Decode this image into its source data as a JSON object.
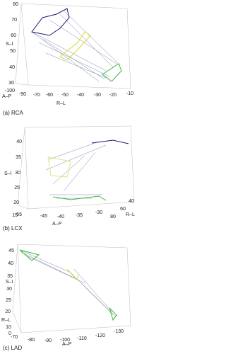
{
  "panels": [
    {
      "caption": "(a) RCA",
      "vertical": {
        "label": "S–I",
        "ticks": [
          80,
          70,
          60,
          50,
          40,
          30
        ]
      },
      "depth": {
        "label": "A–P",
        "ticks": [
          -100,
          -90
        ]
      },
      "horizontal": {
        "label": "R–L",
        "ticks": [
          -70,
          -60,
          -50,
          -40,
          -30,
          -20,
          -10
        ]
      }
    },
    {
      "caption": "(b) LCX",
      "vertical": {
        "label": "S–I",
        "ticks": [
          40,
          35,
          30,
          25,
          20,
          15
        ]
      },
      "depth": {
        "label": "A–P",
        "ticks": [
          -55,
          -45,
          -40,
          -35,
          -30
        ]
      },
      "horizontal": {
        "label": "R–L",
        "ticks": [
          40,
          60,
          80
        ]
      }
    },
    {
      "caption": "(c) LAD",
      "vertical": {
        "label": "S–I",
        "ticks": [
          45,
          40,
          35,
          30,
          25,
          20
        ]
      },
      "horizontal": {
        "label": "R–L",
        "ticks": [
          10,
          0
        ]
      },
      "depth": {
        "label": "A–P",
        "ticks": [
          -70,
          -80,
          -90,
          -100,
          -110,
          -120,
          -130
        ]
      }
    }
  ]
}
